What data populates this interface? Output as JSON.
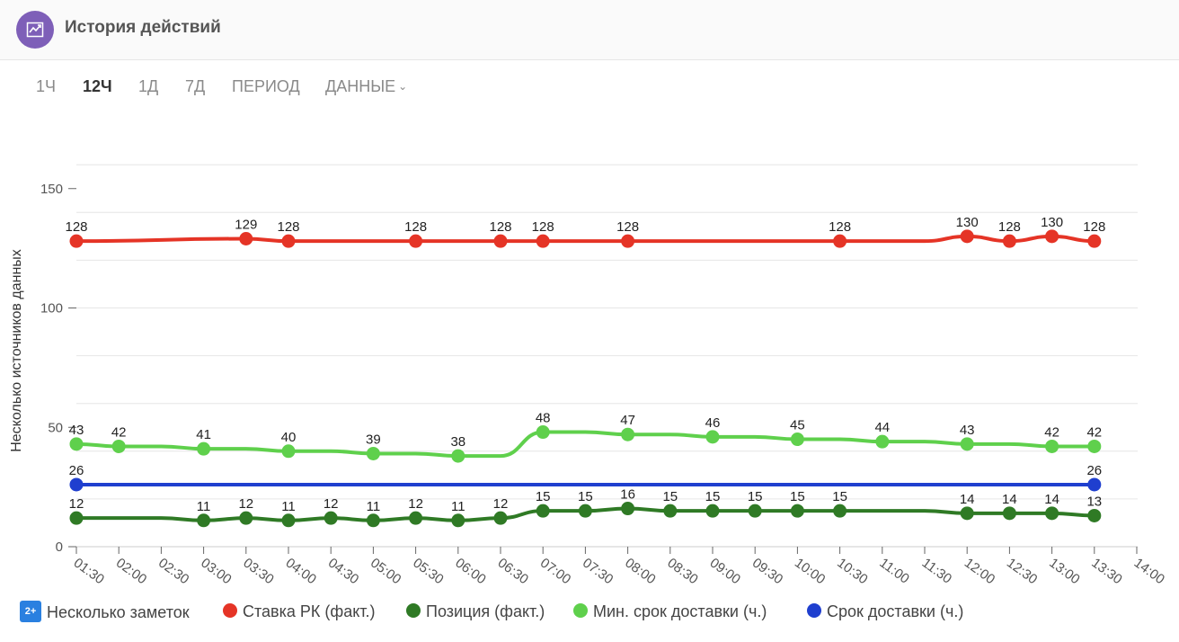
{
  "header": {
    "title": "История действий",
    "icon": "chart-trend-icon"
  },
  "tabs": [
    {
      "label": "1Ч",
      "active": false
    },
    {
      "label": "12Ч",
      "active": true
    },
    {
      "label": "1Д",
      "active": false
    },
    {
      "label": "7Д",
      "active": false
    },
    {
      "label": "ПЕРИОД",
      "active": false
    },
    {
      "label": "ДАННЫЕ",
      "active": false,
      "dropdown": true
    }
  ],
  "legend": {
    "notes": {
      "badge": "2+",
      "label": "Несколько заметок"
    },
    "items": [
      {
        "label": "Ставка РК (факт.)",
        "color": "#e53426"
      },
      {
        "label": "Позиция (факт.)",
        "color": "#2f7a25"
      },
      {
        "label": "Мин. срок доставки (ч.)",
        "color": "#5fd04c"
      },
      {
        "label": "Срок доставки (ч.)",
        "color": "#1f3fcf"
      }
    ]
  },
  "chart_data": {
    "type": "line",
    "ylabel": "Несколько источников данных",
    "yticks": [
      0,
      50,
      100,
      150
    ],
    "ylim": [
      0,
      160
    ],
    "x_range": [
      "01:30",
      "14:00"
    ],
    "grid": true,
    "xticks": [
      "01:30",
      "02:00",
      "02:30",
      "03:00",
      "03:30",
      "04:00",
      "04:30",
      "05:00",
      "05:30",
      "06:00",
      "06:30",
      "07:00",
      "07:30",
      "08:00",
      "08:30",
      "09:00",
      "09:30",
      "10:00",
      "10:30",
      "11:00",
      "11:30",
      "12:00",
      "12:30",
      "13:00",
      "13:30",
      "14:00"
    ],
    "series": [
      {
        "name": "Ставка РК (факт.)",
        "color": "#e53426",
        "points": [
          [
            "01:30",
            128
          ],
          [
            "03:30",
            129
          ],
          [
            "04:00",
            128
          ],
          [
            "05:30",
            128
          ],
          [
            "06:30",
            128
          ],
          [
            "07:00",
            128
          ],
          [
            "08:00",
            128
          ],
          [
            "10:30",
            128
          ],
          [
            "11:30",
            128
          ],
          [
            "12:00",
            130
          ],
          [
            "12:30",
            128
          ],
          [
            "13:00",
            130
          ],
          [
            "13:30",
            128
          ]
        ],
        "markers": [
          "01:30",
          "03:30",
          "04:00",
          "05:30",
          "06:30",
          "07:00",
          "08:00",
          "10:30",
          "12:00",
          "12:30",
          "13:00",
          "13:30"
        ],
        "labels": [
          "01:30",
          "03:30",
          "04:00",
          "05:30",
          "06:30",
          "07:00",
          "08:00",
          "10:30",
          "12:00",
          "12:30",
          "13:00",
          "13:30"
        ]
      },
      {
        "name": "Мин. срок доставки (ч.)",
        "color": "#5fd04c",
        "points": [
          [
            "01:30",
            43
          ],
          [
            "02:00",
            42
          ],
          [
            "02:30",
            42
          ],
          [
            "03:00",
            41
          ],
          [
            "03:30",
            41
          ],
          [
            "04:00",
            40
          ],
          [
            "04:30",
            40
          ],
          [
            "05:00",
            39
          ],
          [
            "05:30",
            39
          ],
          [
            "06:00",
            38
          ],
          [
            "06:30",
            38
          ],
          [
            "07:00",
            48
          ],
          [
            "07:30",
            48
          ],
          [
            "08:00",
            47
          ],
          [
            "08:30",
            47
          ],
          [
            "09:00",
            46
          ],
          [
            "09:30",
            46
          ],
          [
            "10:00",
            45
          ],
          [
            "10:30",
            45
          ],
          [
            "11:00",
            44
          ],
          [
            "11:30",
            44
          ],
          [
            "12:00",
            43
          ],
          [
            "12:30",
            43
          ],
          [
            "13:00",
            42
          ],
          [
            "13:30",
            42
          ]
        ],
        "markers": [
          "01:30",
          "02:00",
          "03:00",
          "04:00",
          "05:00",
          "06:00",
          "07:00",
          "08:00",
          "09:00",
          "10:00",
          "11:00",
          "12:00",
          "13:00",
          "13:30"
        ],
        "labels": [
          "01:30",
          "02:00",
          "03:00",
          "04:00",
          "05:00",
          "06:00",
          "07:00",
          "08:00",
          "09:00",
          "10:00",
          "11:00",
          "12:00",
          "13:00",
          "13:30"
        ]
      },
      {
        "name": "Срок доставки (ч.)",
        "color": "#1f3fcf",
        "points": [
          [
            "01:30",
            26
          ],
          [
            "13:30",
            26
          ]
        ],
        "markers": [
          "01:30",
          "13:30"
        ],
        "labels": [
          "01:30",
          "13:30"
        ]
      },
      {
        "name": "Позиция (факт.)",
        "color": "#2f7a25",
        "points": [
          [
            "01:30",
            12
          ],
          [
            "02:30",
            12
          ],
          [
            "03:00",
            11
          ],
          [
            "03:30",
            12
          ],
          [
            "04:00",
            11
          ],
          [
            "04:30",
            12
          ],
          [
            "05:00",
            11
          ],
          [
            "05:30",
            12
          ],
          [
            "06:00",
            11
          ],
          [
            "06:30",
            12
          ],
          [
            "07:00",
            15
          ],
          [
            "07:30",
            15
          ],
          [
            "08:00",
            16
          ],
          [
            "08:30",
            15
          ],
          [
            "09:00",
            15
          ],
          [
            "09:30",
            15
          ],
          [
            "10:00",
            15
          ],
          [
            "10:30",
            15
          ],
          [
            "11:30",
            15
          ],
          [
            "12:00",
            14
          ],
          [
            "12:30",
            14
          ],
          [
            "13:00",
            14
          ],
          [
            "13:30",
            13
          ]
        ],
        "markers": [
          "01:30",
          "03:00",
          "03:30",
          "04:00",
          "04:30",
          "05:00",
          "05:30",
          "06:00",
          "06:30",
          "07:00",
          "07:30",
          "08:00",
          "08:30",
          "09:00",
          "09:30",
          "10:00",
          "10:30",
          "12:00",
          "12:30",
          "13:00",
          "13:30"
        ],
        "labels": [
          "01:30",
          "03:00",
          "03:30",
          "04:00",
          "04:30",
          "05:00",
          "05:30",
          "06:00",
          "06:30",
          "07:00",
          "07:30",
          "08:00",
          "08:30",
          "09:00",
          "09:30",
          "10:00",
          "10:30",
          "12:00",
          "12:30",
          "13:00",
          "13:30"
        ]
      }
    ]
  }
}
